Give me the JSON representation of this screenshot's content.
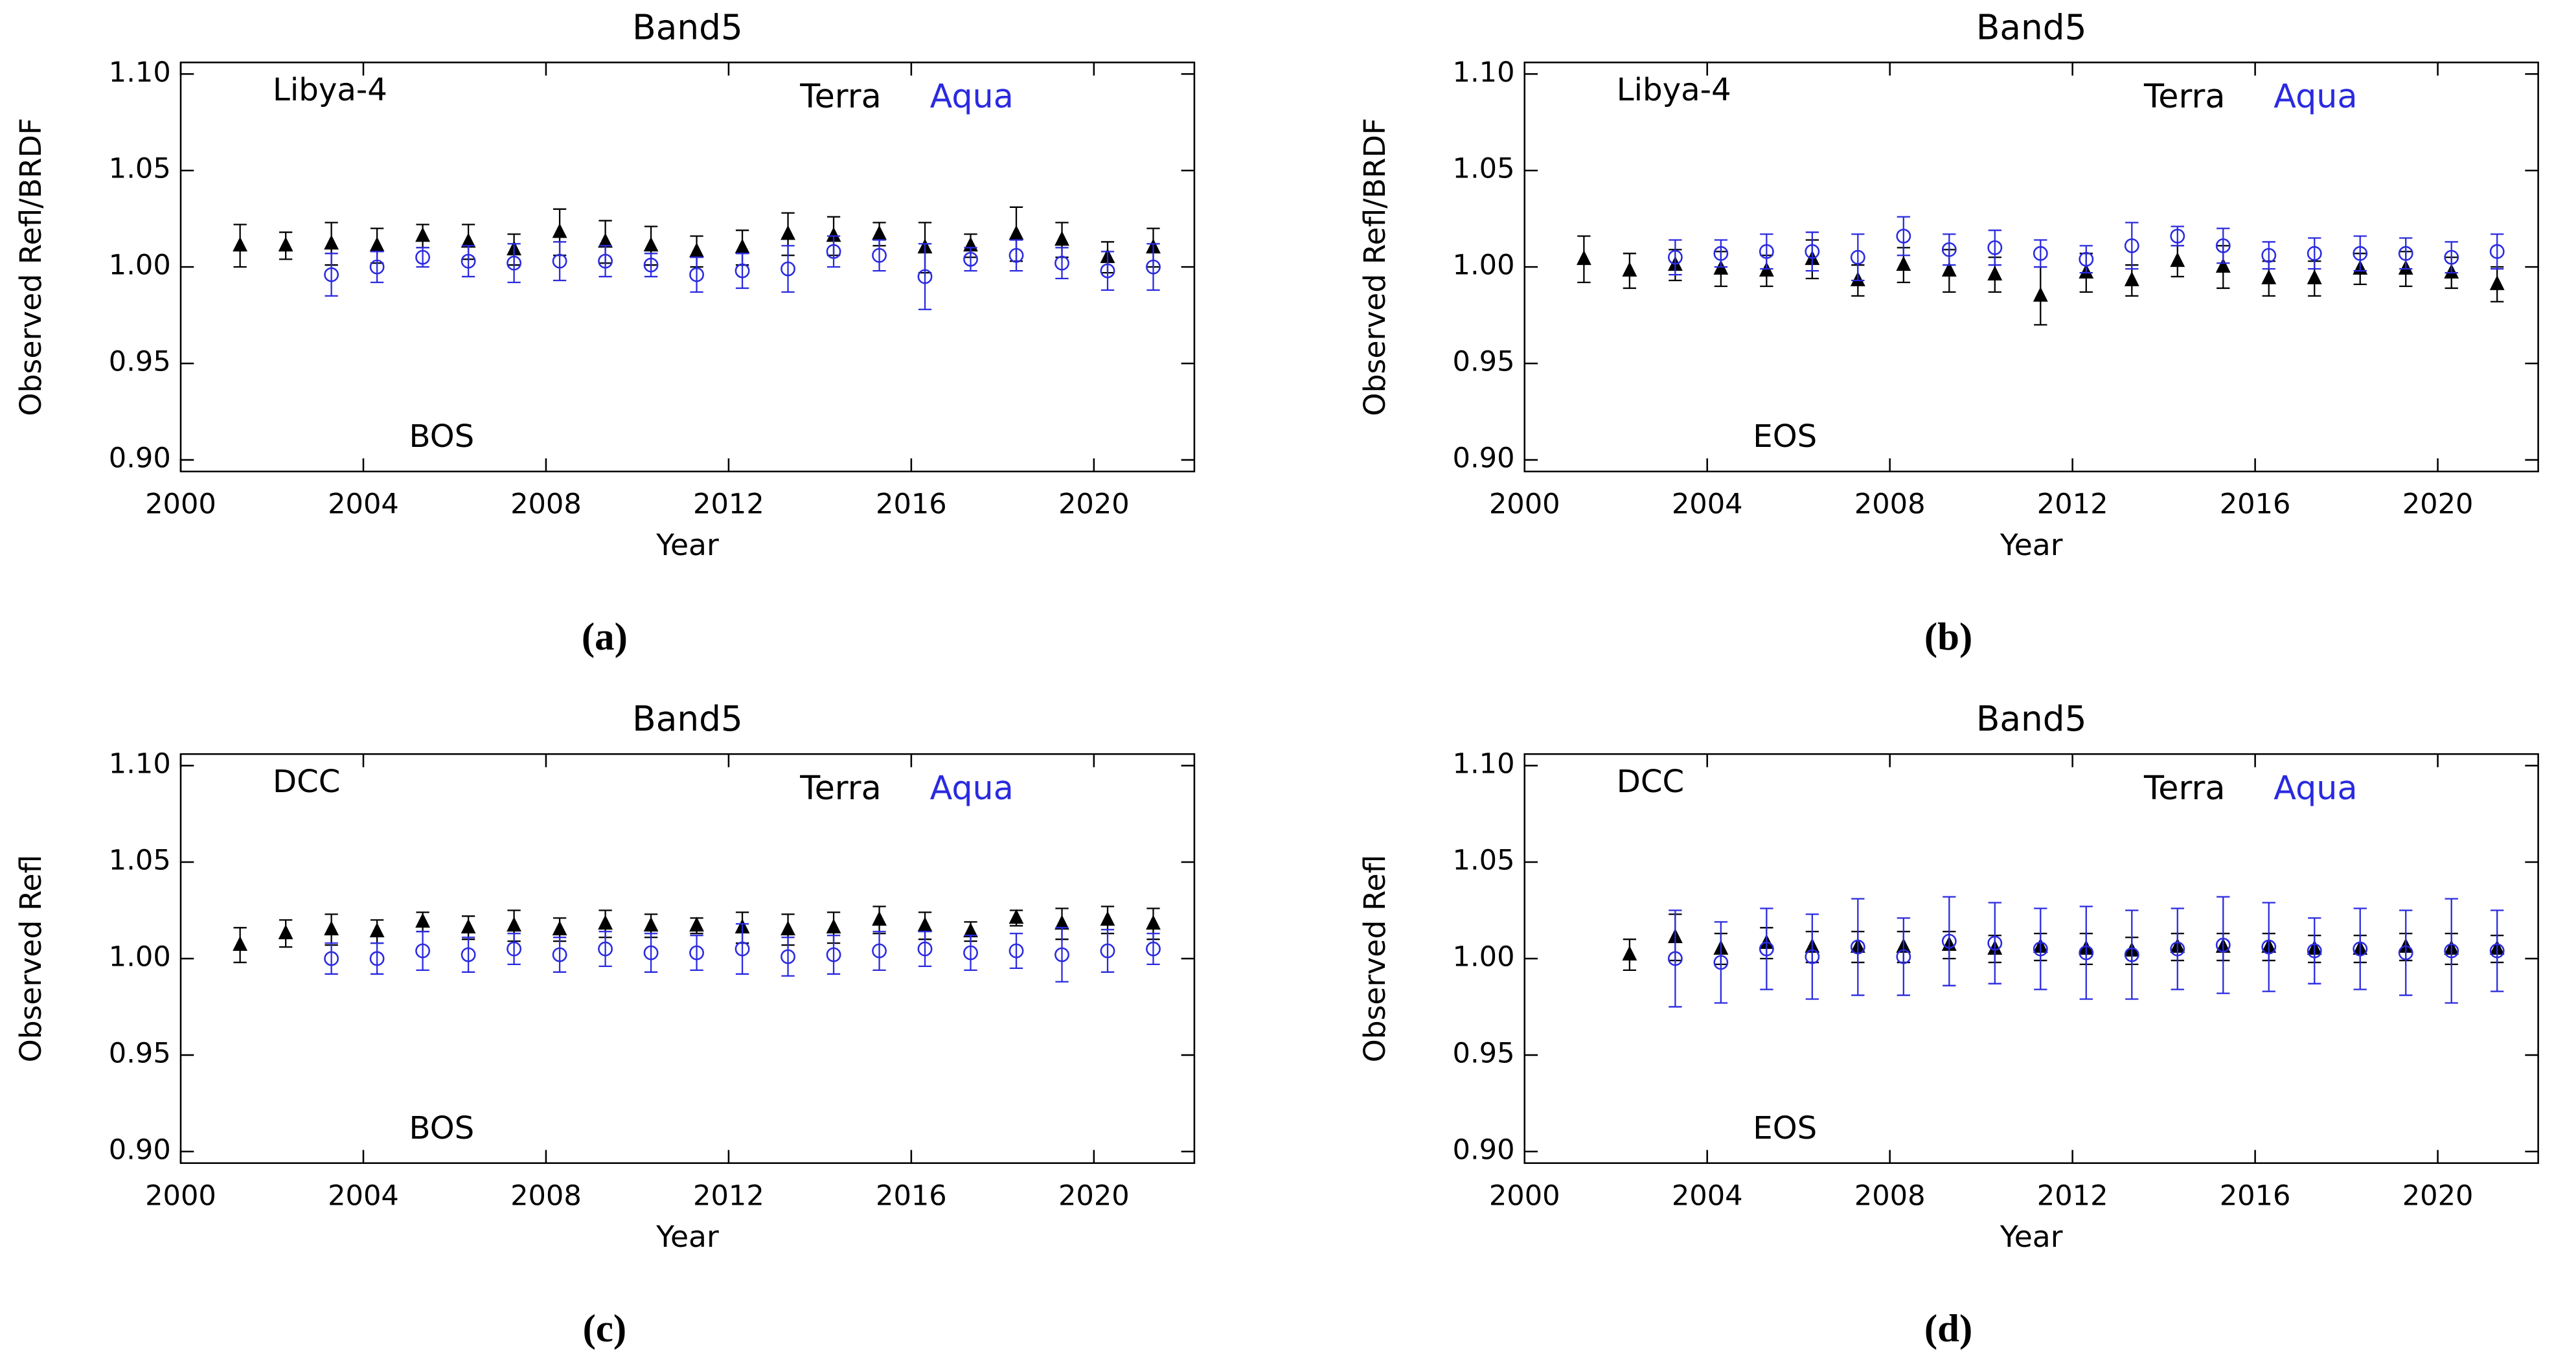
{
  "chart_data": [
    {
      "type": "scatter",
      "title": "Band5",
      "xlabel": "Year",
      "ylabel": "Observed Refl/BRDF",
      "site_label": "Libya-4",
      "mission_label": "BOS",
      "caption": "(a)",
      "xlim": [
        2000,
        2022.2
      ],
      "ylim": [
        0.894,
        1.106
      ],
      "xticks": [
        2000,
        2004,
        2008,
        2012,
        2016,
        2020
      ],
      "yticks": [
        {
          "value": 0.9,
          "label": "0.90"
        },
        0.95,
        {
          "value": 1,
          "label": "1.00"
        },
        1.05,
        {
          "value": 1.1,
          "label": "1.10"
        }
      ],
      "series": [
        {
          "name": "Terra",
          "color": "#000000",
          "marker": "triangle",
          "x": [
            2001.3,
            2002.3,
            2003.3,
            2004.3,
            2005.3,
            2006.3,
            2007.3,
            2008.3,
            2009.3,
            2010.3,
            2011.3,
            2012.3,
            2013.3,
            2014.3,
            2015.3,
            2016.3,
            2017.3,
            2018.3,
            2019.3,
            2020.3,
            2021.3
          ],
          "values": [
            1.011,
            1.011,
            1.012,
            1.011,
            1.016,
            1.013,
            1.009,
            1.018,
            1.013,
            1.011,
            1.008,
            1.01,
            1.017,
            1.016,
            1.017,
            1.01,
            1.011,
            1.017,
            1.014,
            1.005,
            1.01
          ],
          "errors": [
            0.011,
            0.007,
            0.011,
            0.009,
            0.006,
            0.009,
            0.008,
            0.012,
            0.011,
            0.01,
            0.008,
            0.009,
            0.011,
            0.01,
            0.006,
            0.013,
            0.006,
            0.014,
            0.009,
            0.008,
            0.01
          ]
        },
        {
          "name": "Aqua",
          "color": "#2a2ae0",
          "marker": "circle",
          "x": [
            2003.3,
            2004.3,
            2005.3,
            2006.3,
            2007.3,
            2008.3,
            2009.3,
            2010.3,
            2011.3,
            2012.3,
            2013.3,
            2014.3,
            2015.3,
            2016.3,
            2017.3,
            2018.3,
            2019.3,
            2020.3,
            2021.3
          ],
          "values": [
            0.996,
            1.0,
            1.005,
            1.003,
            1.002,
            1.003,
            1.003,
            1.001,
            0.996,
            0.998,
            0.999,
            1.008,
            1.006,
            0.995,
            1.004,
            1.006,
            1.002,
            0.998,
            1.0
          ],
          "errors": [
            0.011,
            0.008,
            0.005,
            0.008,
            0.01,
            0.01,
            0.008,
            0.006,
            0.009,
            0.009,
            0.012,
            0.008,
            0.008,
            0.017,
            0.006,
            0.008,
            0.008,
            0.01,
            0.012
          ]
        }
      ]
    },
    {
      "type": "scatter",
      "title": "Band5",
      "xlabel": "Year",
      "ylabel": "Observed Refl/BRDF",
      "site_label": "Libya-4",
      "mission_label": "EOS",
      "caption": "(b)",
      "xlim": [
        2000,
        2022.2
      ],
      "ylim": [
        0.894,
        1.106
      ],
      "xticks": [
        2000,
        2004,
        2008,
        2012,
        2016,
        2020
      ],
      "yticks": [
        {
          "value": 0.9,
          "label": "0.90"
        },
        0.95,
        {
          "value": 1,
          "label": "1.00"
        },
        1.05,
        {
          "value": 1.1,
          "label": "1.10"
        }
      ],
      "series": [
        {
          "name": "Terra",
          "color": "#000000",
          "marker": "triangle",
          "x": [
            2001.3,
            2002.3,
            2003.3,
            2004.3,
            2005.3,
            2006.3,
            2007.3,
            2008.3,
            2009.3,
            2010.3,
            2011.3,
            2012.3,
            2013.3,
            2014.3,
            2015.3,
            2016.3,
            2017.3,
            2018.3,
            2019.3,
            2020.3,
            2021.3
          ],
          "values": [
            1.004,
            0.998,
            1.001,
            0.999,
            0.998,
            1.004,
            0.993,
            1.001,
            0.998,
            0.996,
            0.985,
            0.997,
            0.993,
            1.003,
            1.0,
            0.994,
            0.994,
            0.999,
            0.999,
            0.997,
            0.991
          ],
          "errors": [
            0.012,
            0.009,
            0.008,
            0.009,
            0.008,
            0.01,
            0.008,
            0.009,
            0.011,
            0.009,
            0.015,
            0.01,
            0.008,
            0.008,
            0.011,
            0.009,
            0.009,
            0.008,
            0.009,
            0.008,
            0.009
          ]
        },
        {
          "name": "Aqua",
          "color": "#2a2ae0",
          "marker": "circle",
          "x": [
            2003.3,
            2004.3,
            2005.3,
            2006.3,
            2007.3,
            2008.3,
            2009.3,
            2010.3,
            2011.3,
            2012.3,
            2013.3,
            2014.3,
            2015.3,
            2016.3,
            2017.3,
            2018.3,
            2019.3,
            2020.3,
            2021.3
          ],
          "values": [
            1.005,
            1.007,
            1.008,
            1.008,
            1.005,
            1.016,
            1.009,
            1.01,
            1.007,
            1.004,
            1.011,
            1.016,
            1.011,
            1.006,
            1.007,
            1.007,
            1.007,
            1.005,
            1.008
          ],
          "errors": [
            0.009,
            0.007,
            0.009,
            0.01,
            0.012,
            0.01,
            0.008,
            0.009,
            0.007,
            0.007,
            0.012,
            0.005,
            0.009,
            0.007,
            0.008,
            0.009,
            0.008,
            0.008,
            0.009
          ]
        }
      ]
    },
    {
      "type": "scatter",
      "title": "Band5",
      "xlabel": "Year",
      "ylabel": "Observed Refl",
      "site_label": "DCC",
      "mission_label": "BOS",
      "caption": "(c)",
      "xlim": [
        2000,
        2022.2
      ],
      "ylim": [
        0.894,
        1.106
      ],
      "xticks": [
        2000,
        2004,
        2008,
        2012,
        2016,
        2020
      ],
      "yticks": [
        {
          "value": 0.9,
          "label": "0.90"
        },
        0.95,
        {
          "value": 1,
          "label": "1.00"
        },
        1.05,
        {
          "value": 1.1,
          "label": "1.10"
        }
      ],
      "series": [
        {
          "name": "Terra",
          "color": "#000000",
          "marker": "triangle",
          "x": [
            2001.3,
            2002.3,
            2003.3,
            2004.3,
            2005.3,
            2006.3,
            2007.3,
            2008.3,
            2009.3,
            2010.3,
            2011.3,
            2012.3,
            2013.3,
            2014.3,
            2015.3,
            2016.3,
            2017.3,
            2018.3,
            2019.3,
            2020.3,
            2021.3
          ],
          "values": [
            1.007,
            1.013,
            1.015,
            1.014,
            1.019,
            1.016,
            1.017,
            1.015,
            1.018,
            1.017,
            1.017,
            1.016,
            1.015,
            1.016,
            1.02,
            1.017,
            1.014,
            1.021,
            1.018,
            1.02,
            1.018
          ],
          "errors": [
            0.009,
            0.007,
            0.008,
            0.006,
            0.005,
            0.006,
            0.008,
            0.006,
            0.007,
            0.006,
            0.004,
            0.008,
            0.008,
            0.008,
            0.007,
            0.007,
            0.005,
            0.004,
            0.008,
            0.007,
            0.008
          ]
        },
        {
          "name": "Aqua",
          "color": "#2a2ae0",
          "marker": "circle",
          "x": [
            2003.3,
            2004.3,
            2005.3,
            2006.3,
            2007.3,
            2008.3,
            2009.3,
            2010.3,
            2011.3,
            2012.3,
            2013.3,
            2014.3,
            2015.3,
            2016.3,
            2017.3,
            2018.3,
            2019.3,
            2020.3,
            2021.3
          ],
          "values": [
            1.0,
            1.0,
            1.004,
            1.002,
            1.005,
            1.002,
            1.005,
            1.003,
            1.003,
            1.005,
            1.001,
            1.002,
            1.004,
            1.005,
            1.003,
            1.004,
            1.002,
            1.004,
            1.005
          ],
          "errors": [
            0.008,
            0.008,
            0.01,
            0.009,
            0.008,
            0.009,
            0.009,
            0.01,
            0.009,
            0.013,
            0.01,
            0.01,
            0.01,
            0.009,
            0.009,
            0.009,
            0.014,
            0.011,
            0.008
          ]
        }
      ]
    },
    {
      "type": "scatter",
      "title": "Band5",
      "xlabel": "Year",
      "ylabel": "Observed Refl",
      "site_label": "DCC",
      "mission_label": "EOS",
      "caption": "(d)",
      "xlim": [
        2000,
        2022.2
      ],
      "ylim": [
        0.894,
        1.106
      ],
      "xticks": [
        2000,
        2004,
        2008,
        2012,
        2016,
        2020
      ],
      "yticks": [
        {
          "value": 0.9,
          "label": "0.90"
        },
        0.95,
        {
          "value": 1,
          "label": "1.00"
        },
        1.05,
        {
          "value": 1.1,
          "label": "1.10"
        }
      ],
      "series": [
        {
          "name": "Terra",
          "color": "#000000",
          "marker": "triangle",
          "x": [
            2002.3,
            2003.3,
            2004.3,
            2005.3,
            2006.3,
            2007.3,
            2008.3,
            2009.3,
            2010.3,
            2011.3,
            2012.3,
            2013.3,
            2014.3,
            2015.3,
            2016.3,
            2017.3,
            2018.3,
            2019.3,
            2020.3,
            2021.3
          ],
          "values": [
            1.002,
            1.011,
            1.005,
            1.008,
            1.006,
            1.006,
            1.006,
            1.007,
            1.005,
            1.006,
            1.005,
            1.004,
            1.006,
            1.006,
            1.006,
            1.005,
            1.005,
            1.006,
            1.005,
            1.005
          ],
          "errors": [
            0.008,
            0.012,
            0.008,
            0.008,
            0.008,
            0.008,
            0.008,
            0.007,
            0.007,
            0.007,
            0.008,
            0.007,
            0.007,
            0.007,
            0.007,
            0.007,
            0.007,
            0.007,
            0.008,
            0.007
          ]
        },
        {
          "name": "Aqua",
          "color": "#2a2ae0",
          "marker": "circle",
          "x": [
            2003.3,
            2004.3,
            2005.3,
            2006.3,
            2007.3,
            2008.3,
            2009.3,
            2010.3,
            2011.3,
            2012.3,
            2013.3,
            2014.3,
            2015.3,
            2016.3,
            2017.3,
            2018.3,
            2019.3,
            2020.3,
            2021.3
          ],
          "values": [
            1.0,
            0.998,
            1.005,
            1.001,
            1.006,
            1.001,
            1.009,
            1.008,
            1.005,
            1.003,
            1.002,
            1.005,
            1.007,
            1.006,
            1.004,
            1.005,
            1.003,
            1.004,
            1.004
          ],
          "errors": [
            0.025,
            0.021,
            0.021,
            0.022,
            0.025,
            0.02,
            0.023,
            0.021,
            0.021,
            0.024,
            0.023,
            0.021,
            0.025,
            0.023,
            0.017,
            0.021,
            0.022,
            0.027,
            0.021
          ]
        }
      ]
    }
  ]
}
